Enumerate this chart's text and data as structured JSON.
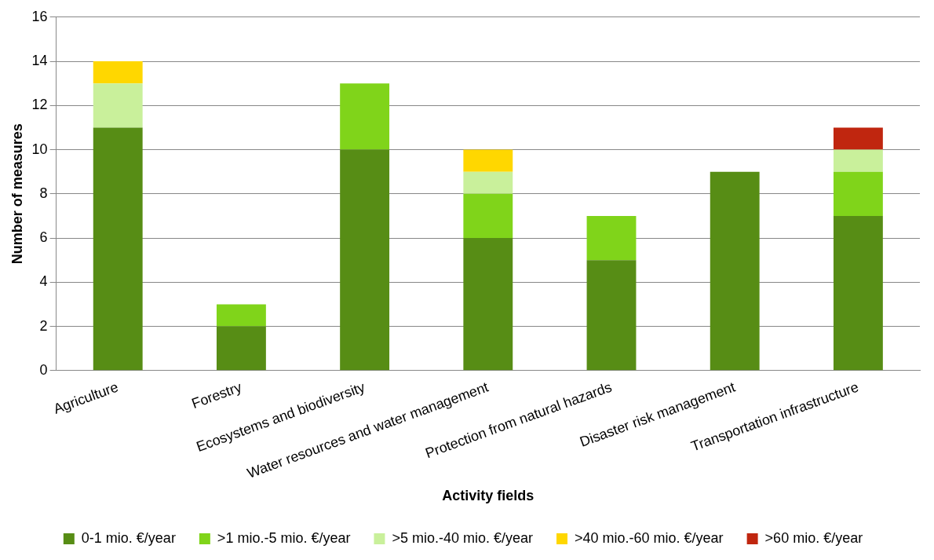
{
  "chart_data": {
    "type": "bar",
    "stacked": true,
    "xlabel": "Activity fields",
    "ylabel": "Number of measures",
    "categories": [
      "Agriculture",
      "Forestry",
      "Ecosystems and biodiversity",
      "Water resources and water management",
      "Protection from natural hazards",
      "Disaster risk management",
      "Transportation infrastructure"
    ],
    "series": [
      {
        "name": "0-1 mio. €/year",
        "color": "#578d15",
        "values": [
          11,
          2,
          10,
          6,
          5,
          9,
          7
        ]
      },
      {
        "name": ">1 mio.-5 mio. €/year",
        "color": "#80d41a",
        "values": [
          0,
          1,
          3,
          2,
          2,
          0,
          2
        ]
      },
      {
        "name": ">5 mio.-40 mio. €/year",
        "color": "#c9f09b",
        "values": [
          2,
          0,
          0,
          1,
          0,
          0,
          1
        ]
      },
      {
        "name": ">40 mio.-60 mio. €/year",
        "color": "#ffd700",
        "values": [
          1,
          0,
          0,
          1,
          0,
          0,
          0
        ]
      },
      {
        "name": ">60 mio. €/year",
        "color": "#c0260f",
        "values": [
          0,
          0,
          0,
          0,
          0,
          0,
          1
        ]
      }
    ],
    "ylim": [
      0,
      16
    ],
    "yticks": [
      0,
      2,
      4,
      6,
      8,
      10,
      12,
      14,
      16
    ],
    "grid": "y",
    "legend": "bottom"
  }
}
